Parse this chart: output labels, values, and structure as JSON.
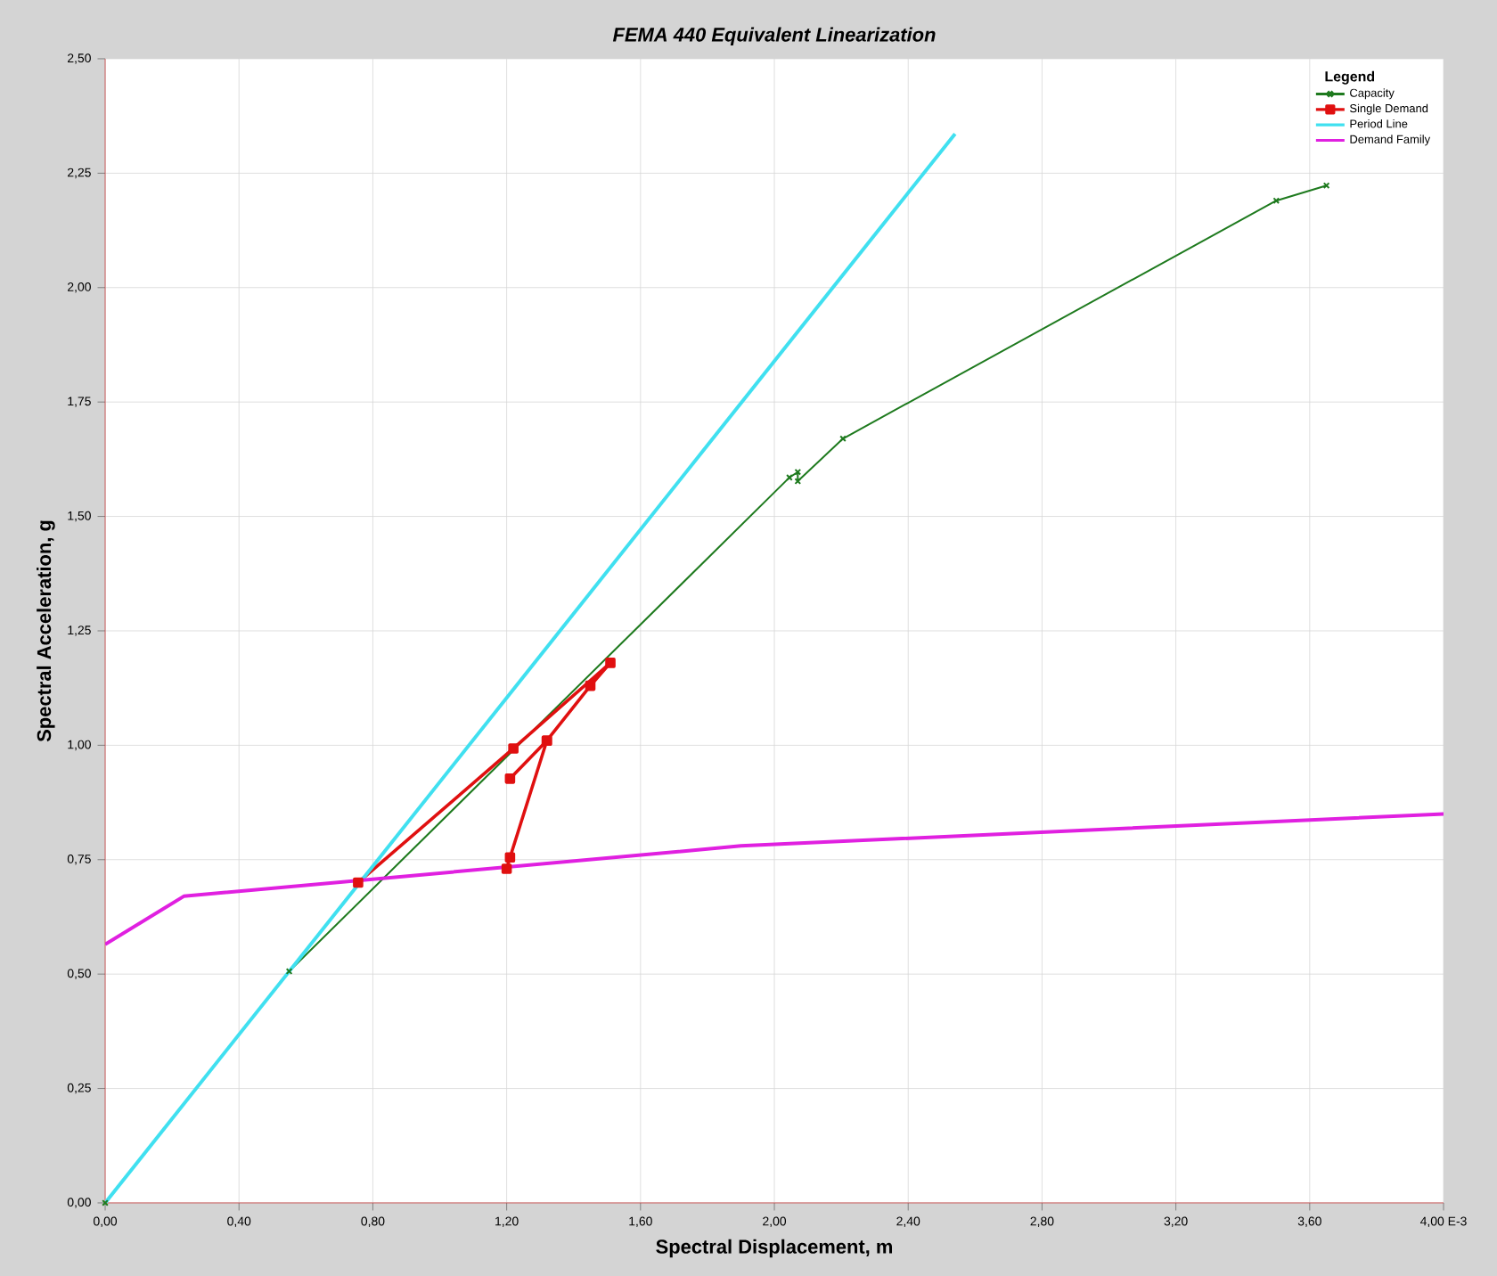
{
  "chart_data": {
    "type": "line",
    "title": "FEMA 440 Equivalent Linearization",
    "xlabel": "Spectral Displacement, m",
    "ylabel": "Spectral Acceleration, g",
    "legend_title": "Legend",
    "xlim": [
      0,
      4
    ],
    "ylim": [
      0,
      2.5
    ],
    "xticks": [
      {
        "value": 0,
        "label": "0,00"
      },
      {
        "value": 0.4,
        "label": "0,40"
      },
      {
        "value": 0.8,
        "label": "0,80"
      },
      {
        "value": 1.2,
        "label": "1,20"
      },
      {
        "value": 1.6,
        "label": "1,60"
      },
      {
        "value": 2.0,
        "label": "2,00"
      },
      {
        "value": 2.4,
        "label": "2,40"
      },
      {
        "value": 2.8,
        "label": "2,80"
      },
      {
        "value": 3.2,
        "label": "3,20"
      },
      {
        "value": 3.6,
        "label": "3,60"
      },
      {
        "value": 4.0,
        "label": "4,00 E-3"
      }
    ],
    "yticks": [
      {
        "value": 0,
        "label": "0,00"
      },
      {
        "value": 0.25,
        "label": "0,25"
      },
      {
        "value": 0.5,
        "label": "0,50"
      },
      {
        "value": 0.75,
        "label": "0,75"
      },
      {
        "value": 1.0,
        "label": "1,00"
      },
      {
        "value": 1.25,
        "label": "1,25"
      },
      {
        "value": 1.5,
        "label": "1,50"
      },
      {
        "value": 1.75,
        "label": "1,75"
      },
      {
        "value": 2.0,
        "label": "2,00"
      },
      {
        "value": 2.25,
        "label": "2,25"
      },
      {
        "value": 2.5,
        "label": "2,50"
      }
    ],
    "grid": true,
    "legend": "top right",
    "series": [
      {
        "name": "Capacity",
        "color": "#1e7a1e",
        "marker": "cross",
        "x": [
          0,
          0.55,
          2.045,
          2.07,
          2.07,
          2.205,
          3.5,
          3.65
        ],
        "values": [
          0,
          0.506,
          1.585,
          1.597,
          1.577,
          1.67,
          2.19,
          2.223
        ]
      },
      {
        "name": "Single Demand",
        "color": "#e01010",
        "marker": "square",
        "x": [
          0.756,
          1.22,
          1.51,
          1.45,
          1.32,
          1.21,
          1.2,
          null,
          1.21,
          1.32
        ],
        "values": [
          0.7,
          0.993,
          1.18,
          1.13,
          1.01,
          0.755,
          0.73,
          null,
          0.927,
          1.01
        ]
      },
      {
        "name": "Period Line",
        "color": "#40e0f0",
        "marker": "none",
        "x": [
          0,
          2.54
        ],
        "values": [
          0,
          2.336
        ]
      },
      {
        "name": "Demand Family",
        "color": "#e020e0",
        "marker": "none",
        "x": [
          0,
          0.235,
          1.9,
          4.0
        ],
        "values": [
          0.565,
          0.67,
          0.78,
          0.85
        ]
      }
    ]
  }
}
